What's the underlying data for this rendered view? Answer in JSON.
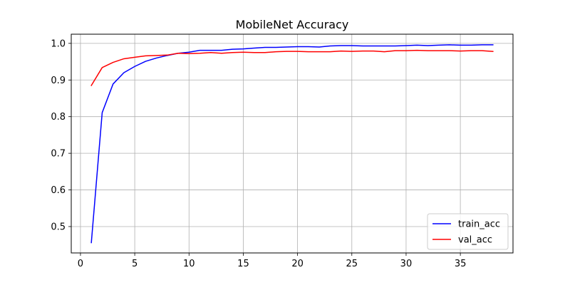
{
  "chart_data": {
    "type": "line",
    "title": "MobileNet Accuracy",
    "xlabel": "",
    "ylabel": "",
    "xlim": [
      -0.85,
      39.85
    ],
    "ylim": [
      0.428,
      1.025
    ],
    "xticks": [
      0,
      5,
      10,
      15,
      20,
      25,
      30,
      35
    ],
    "yticks": [
      0.5,
      0.6,
      0.7,
      0.8,
      0.9,
      1.0
    ],
    "grid": true,
    "legend_position": "lower-right",
    "x": [
      1,
      2,
      3,
      4,
      5,
      6,
      7,
      8,
      9,
      10,
      11,
      12,
      13,
      14,
      15,
      16,
      17,
      18,
      19,
      20,
      21,
      22,
      23,
      24,
      25,
      26,
      27,
      28,
      29,
      30,
      31,
      32,
      33,
      34,
      35,
      36,
      37,
      38
    ],
    "series": [
      {
        "name": "train_acc",
        "color": "#0000ff",
        "values": [
          0.456,
          0.811,
          0.889,
          0.92,
          0.937,
          0.951,
          0.96,
          0.967,
          0.973,
          0.976,
          0.981,
          0.981,
          0.981,
          0.984,
          0.985,
          0.987,
          0.989,
          0.989,
          0.99,
          0.991,
          0.991,
          0.99,
          0.993,
          0.994,
          0.994,
          0.993,
          0.993,
          0.993,
          0.993,
          0.994,
          0.995,
          0.994,
          0.995,
          0.996,
          0.995,
          0.995,
          0.996,
          0.996
        ]
      },
      {
        "name": "val_acc",
        "color": "#ff0000",
        "values": [
          0.885,
          0.934,
          0.948,
          0.958,
          0.962,
          0.966,
          0.967,
          0.968,
          0.973,
          0.972,
          0.973,
          0.975,
          0.973,
          0.975,
          0.976,
          0.975,
          0.975,
          0.977,
          0.978,
          0.978,
          0.977,
          0.977,
          0.977,
          0.979,
          0.978,
          0.979,
          0.979,
          0.977,
          0.98,
          0.98,
          0.981,
          0.98,
          0.98,
          0.98,
          0.979,
          0.98,
          0.98,
          0.978
        ]
      }
    ]
  }
}
